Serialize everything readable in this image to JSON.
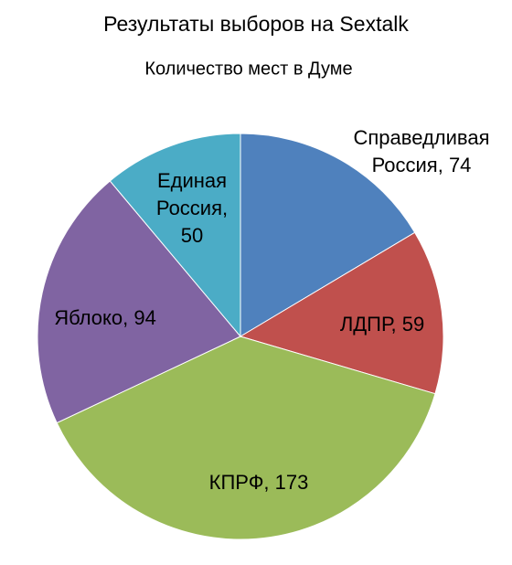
{
  "chart_data": {
    "type": "pie",
    "title": "Результаты выборов на Sextalk",
    "subtitle": "Количество мест в Думе",
    "values": [
      74,
      59,
      173,
      94,
      50
    ],
    "value_labels": [
      "Справедливая Россия, 74",
      "ЛДПР, 59",
      "КПРФ, 173",
      "Яблоко, 94",
      "Единая Россия, 50"
    ],
    "colors": [
      "#4f81bd",
      "#c0504d",
      "#9bbb59",
      "#8064a2",
      "#4bacc6"
    ]
  }
}
